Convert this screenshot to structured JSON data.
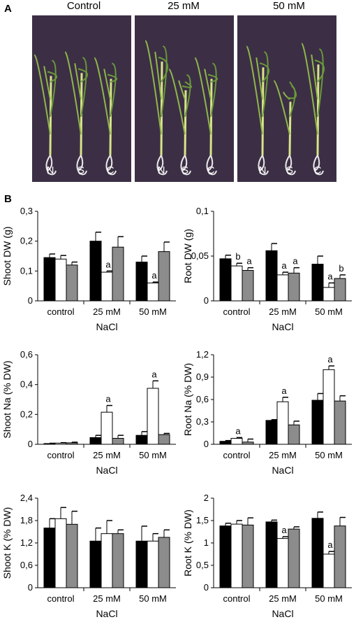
{
  "panel_a": {
    "letter": "A",
    "photos": [
      {
        "title": "Control",
        "labels": [
          "N",
          "S",
          "C"
        ]
      },
      {
        "title": "25 mM",
        "labels": [
          "N",
          "S",
          "C"
        ]
      },
      {
        "title": "50 mM",
        "labels": [
          "N",
          "S",
          "C"
        ]
      }
    ]
  },
  "panel_b": {
    "letter": "B"
  },
  "colors": {
    "series1": "#000000",
    "series2": "#ffffff",
    "series3": "#8c8c8c",
    "photo_bg": "#3c2f45"
  },
  "chart_data": [
    {
      "type": "bar",
      "ylabel": "Shoot DW (g)",
      "xlabel": "NaCl",
      "categories": [
        "control",
        "25 mM",
        "50 mM"
      ],
      "yticks": [
        "0",
        "0,1",
        "0,2",
        "0,3"
      ],
      "ylim": [
        0,
        0.3
      ],
      "series": [
        {
          "values": [
            0.145,
            0.2,
            0.13
          ],
          "errors": [
            0.012,
            0.03,
            0.02
          ]
        },
        {
          "values": [
            0.14,
            0.096,
            0.06
          ],
          "errors": [
            0.012,
            0.004,
            0.003
          ]
        },
        {
          "values": [
            0.12,
            0.18,
            0.165
          ],
          "errors": [
            0.01,
            0.035,
            0.032
          ]
        }
      ],
      "annotations": [
        {
          "category": 1,
          "series": 1,
          "text": "a"
        },
        {
          "category": 2,
          "series": 1,
          "text": "a"
        }
      ]
    },
    {
      "type": "bar",
      "ylabel": "Root DW (g)",
      "xlabel": "NaCl",
      "categories": [
        "control",
        "25 mM",
        "50 mM"
      ],
      "yticks": [
        "0",
        "0,05",
        "0,1"
      ],
      "ylim": [
        0,
        0.1
      ],
      "series": [
        {
          "values": [
            0.047,
            0.056,
            0.041
          ],
          "errors": [
            0.004,
            0.008,
            0.009
          ]
        },
        {
          "values": [
            0.039,
            0.029,
            0.015
          ],
          "errors": [
            0.003,
            0.003,
            0.005
          ]
        },
        {
          "values": [
            0.034,
            0.031,
            0.025
          ],
          "errors": [
            0.003,
            0.006,
            0.004
          ]
        }
      ],
      "annotations": [
        {
          "category": 0,
          "series": 1,
          "text": "b"
        },
        {
          "category": 0,
          "series": 2,
          "text": "a"
        },
        {
          "category": 1,
          "series": 1,
          "text": "a"
        },
        {
          "category": 1,
          "series": 2,
          "text": "a"
        },
        {
          "category": 2,
          "series": 1,
          "text": "a"
        },
        {
          "category": 2,
          "series": 2,
          "text": "b"
        }
      ]
    },
    {
      "type": "bar",
      "ylabel": "Shoot Na (% DW)",
      "xlabel": "NaCl",
      "categories": [
        "control",
        "25 mM",
        "50 mM"
      ],
      "yticks": [
        "0",
        "0,2",
        "0,4",
        "0,6"
      ],
      "ylim": [
        0,
        0.6
      ],
      "series": [
        {
          "values": [
            0.005,
            0.045,
            0.06
          ],
          "errors": [
            0.002,
            0.015,
            0.025
          ]
        },
        {
          "values": [
            0.008,
            0.215,
            0.375
          ],
          "errors": [
            0.003,
            0.045,
            0.05
          ]
        },
        {
          "values": [
            0.01,
            0.04,
            0.065
          ],
          "errors": [
            0.004,
            0.02,
            0.008
          ]
        }
      ],
      "annotations": [
        {
          "category": 1,
          "series": 1,
          "text": "a"
        },
        {
          "category": 2,
          "series": 1,
          "text": "a"
        }
      ]
    },
    {
      "type": "bar",
      "ylabel": "Root Na (% DW)",
      "xlabel": "NaCl",
      "categories": [
        "control",
        "25 mM",
        "50 mM"
      ],
      "yticks": [
        "0",
        "0,3",
        "0,6",
        "0,9",
        "1,2"
      ],
      "ylim": [
        0,
        1.2
      ],
      "series": [
        {
          "values": [
            0.04,
            0.32,
            0.59
          ],
          "errors": [
            0.01,
            0.01,
            0.09
          ]
        },
        {
          "values": [
            0.08,
            0.57,
            1.0
          ],
          "errors": [
            0.01,
            0.06,
            0.05
          ]
        },
        {
          "values": [
            0.03,
            0.26,
            0.58
          ],
          "errors": [
            0.04,
            0.05,
            0.07
          ]
        }
      ],
      "annotations": [
        {
          "category": 0,
          "series": 1,
          "text": "a"
        },
        {
          "category": 1,
          "series": 1,
          "text": "a"
        },
        {
          "category": 2,
          "series": 1,
          "text": "a"
        }
      ]
    },
    {
      "type": "bar",
      "ylabel": "Shoot K (% DW)",
      "xlabel": "NaCl",
      "categories": [
        "control",
        "25 mM",
        "50 mM"
      ],
      "yticks": [
        "0",
        "0,6",
        "1,2",
        "1,8",
        "2,4"
      ],
      "ylim": [
        0,
        2.4
      ],
      "series": [
        {
          "values": [
            1.6,
            1.25,
            1.25
          ],
          "errors": [
            0.25,
            0.35,
            0.4
          ]
        },
        {
          "values": [
            1.85,
            1.45,
            1.25
          ],
          "errors": [
            0.3,
            0.35,
            0.2
          ]
        },
        {
          "values": [
            1.7,
            1.45,
            1.35
          ],
          "errors": [
            0.35,
            0.1,
            0.2
          ]
        }
      ],
      "annotations": []
    },
    {
      "type": "bar",
      "ylabel": "Root K (% DW)",
      "xlabel": "NaCl",
      "categories": [
        "control",
        "25 mM",
        "50 mM"
      ],
      "yticks": [
        "0",
        "0,5",
        "1",
        "1,5",
        "2"
      ],
      "ylim": [
        0,
        2
      ],
      "series": [
        {
          "values": [
            1.38,
            1.47,
            1.55
          ],
          "errors": [
            0.06,
            0.04,
            0.14
          ]
        },
        {
          "values": [
            1.42,
            1.1,
            0.75
          ],
          "errors": [
            0.08,
            0.04,
            0.06
          ]
        },
        {
          "values": [
            1.4,
            1.31,
            1.38
          ],
          "errors": [
            0.16,
            0.05,
            0.19
          ]
        }
      ],
      "annotations": [
        {
          "category": 1,
          "series": 1,
          "text": "a"
        },
        {
          "category": 2,
          "series": 1,
          "text": "a"
        }
      ]
    }
  ]
}
